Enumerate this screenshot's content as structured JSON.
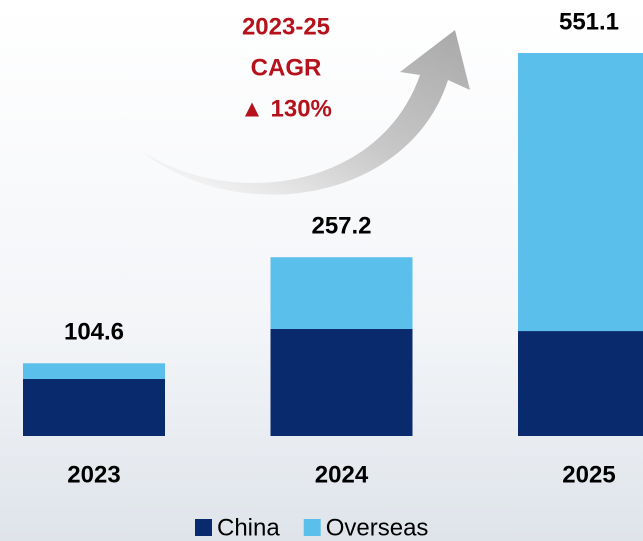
{
  "chart_data": {
    "type": "stacked-bar",
    "categories": [
      "2023",
      "2024",
      "2025"
    ],
    "series": [
      {
        "name": "China",
        "color": "#0a2a6e",
        "values": [
          82,
          154,
          151
        ]
      },
      {
        "name": "Overseas",
        "color": "#5bbfec",
        "values": [
          22.6,
          103.2,
          400.1
        ]
      }
    ],
    "totals": [
      104.6,
      257.2,
      551.1
    ],
    "ylim": [
      0,
      600
    ],
    "annotation": [
      "2023-25",
      "CAGR",
      "▲ 130%"
    ],
    "annotation_color": "#b5121b"
  }
}
